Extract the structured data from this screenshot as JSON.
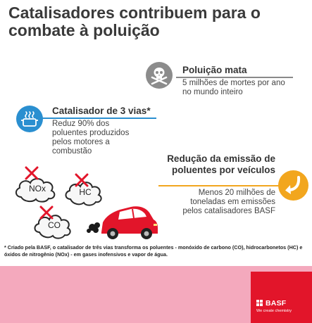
{
  "title": "Catalisadores contribuem para o combate à poluição",
  "pollution": {
    "title": "Poluição mata",
    "text": "5 milhões de mortes por ano no mundo inteiro",
    "icon": "skull-crossbones-icon",
    "rule_color": "#8a8a8a",
    "circle_color": "#8c8c8c"
  },
  "catalyst": {
    "title": "Catalisador de 3 vias*",
    "text": "Reduz 90% dos poluentes produzidos pelos motores a combustão",
    "icon": "catalytic-converter-icon",
    "rule_color": "#2a8fd0",
    "circle_color": "#2a8fd0"
  },
  "reduction": {
    "title": "Redução da emissão de poluentes por veículos",
    "text": "Menos 20 milhões de toneladas em emissões pelos catalisadores BASF",
    "icon": "curved-arrow-icon",
    "rule_color": "#f2a61e",
    "circle_color": "#f2a61e"
  },
  "pollutants": {
    "clouds": [
      "NOx",
      "HC",
      "CO"
    ],
    "cross_color": "#e2152a",
    "car_color": "#e2152a"
  },
  "footnote": "* Criado pela BASF, o catalisador de três vias transforma os poluentes - monóxido de carbono (CO), hidrocarbonetos (HC) e óxidos de nitrogênio (NOx) - em gases inofensivos e vapor de água.",
  "brand": {
    "name": "BASF",
    "tagline": "We create chemistry",
    "color": "#e2152a"
  }
}
